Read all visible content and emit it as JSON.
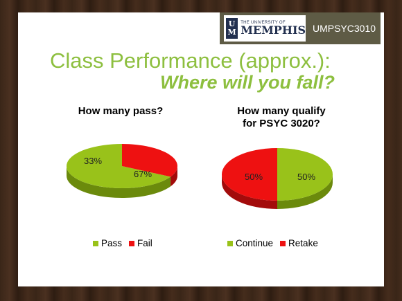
{
  "header": {
    "logo_top": "THE UNIVERSITY OF",
    "logo_name": "MEMPHIS",
    "logo_mark_top": "U",
    "logo_mark_bottom": "M",
    "course": "UMPSYC3010"
  },
  "title": {
    "line1": "Class Performance (approx.):",
    "line2": "Where will you fall?"
  },
  "colors": {
    "green": "#99c21a",
    "green_dark": "#6b8a0c",
    "red": "#ee1111",
    "red_dark": "#a30b0b",
    "title": "#8dbf3f"
  },
  "chart_data": [
    {
      "type": "pie",
      "title": "How many pass?",
      "categories": [
        "Pass",
        "Fail"
      ],
      "values": [
        67,
        33
      ],
      "labels": [
        "67%",
        "33%"
      ],
      "colors": [
        "#99c21a",
        "#ee1111"
      ],
      "legend": "bottom"
    },
    {
      "type": "pie",
      "title_lines": [
        "How many qualify",
        "for PSYC 3020?"
      ],
      "categories": [
        "Continue",
        "Retake"
      ],
      "values": [
        50,
        50
      ],
      "labels": [
        "50%",
        "50%"
      ],
      "colors": [
        "#99c21a",
        "#ee1111"
      ],
      "legend": "bottom"
    }
  ]
}
